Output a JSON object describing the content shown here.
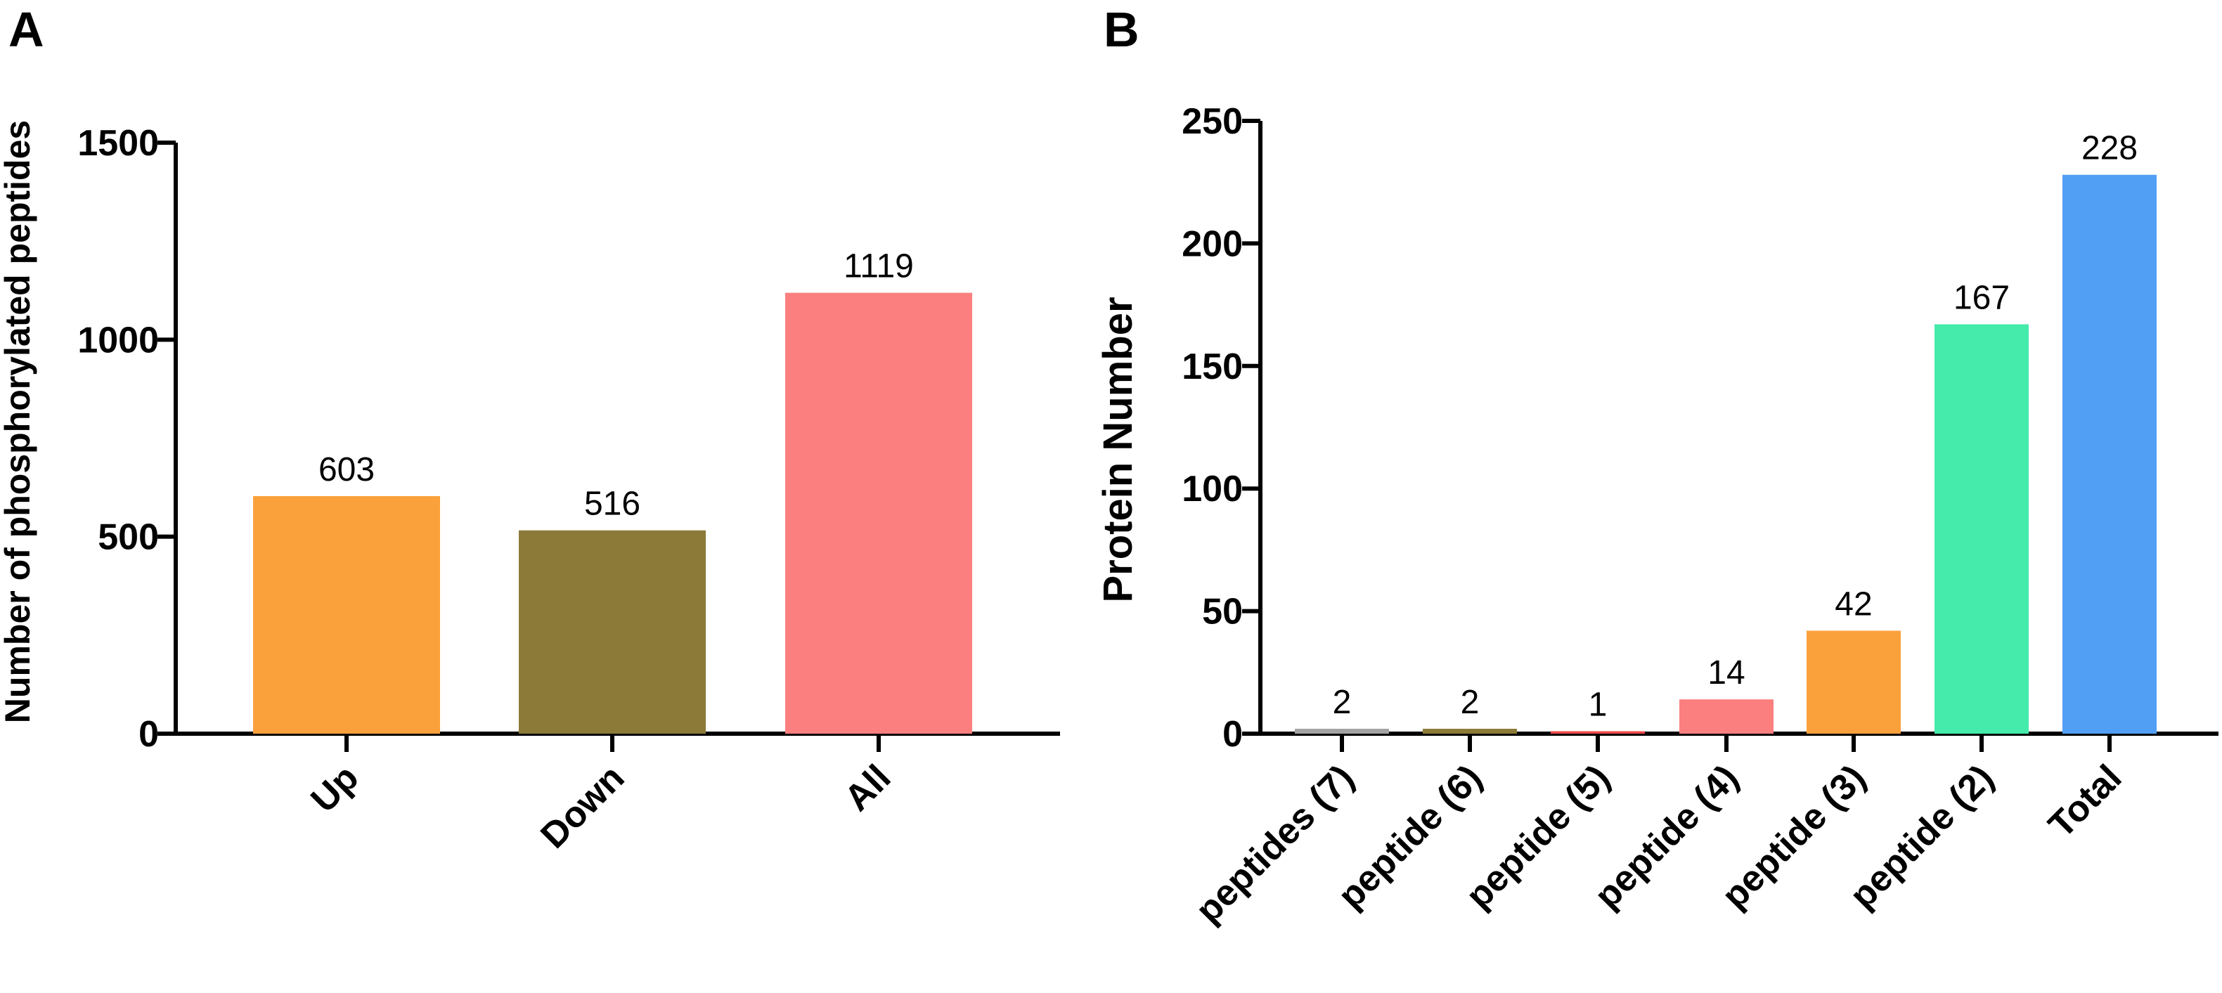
{
  "chart_data": [
    {
      "panel": "A",
      "type": "bar",
      "title": "",
      "xlabel": "",
      "ylabel": "Number of phosphorylated peptides",
      "ylim": [
        0,
        1500
      ],
      "yticks": [
        0,
        500,
        1000,
        1500
      ],
      "categories": [
        "Up",
        "Down",
        "All"
      ],
      "values": [
        603,
        516,
        1119
      ],
      "colors": [
        "#FBA13C",
        "#8B7A38",
        "#FC7F7F"
      ],
      "data_labels": [
        "603",
        "516",
        "1119"
      ],
      "grid": false
    },
    {
      "panel": "B",
      "type": "bar",
      "title": "",
      "xlabel": "",
      "ylabel": "Protein Number",
      "ylim": [
        0,
        250
      ],
      "yticks": [
        0,
        50,
        100,
        150,
        200,
        250
      ],
      "categories": [
        "peptides (7)",
        "peptide (6)",
        "peptide (5)",
        "peptide (4)",
        "peptide (3)",
        "peptide (2)",
        "Total"
      ],
      "values": [
        2,
        2,
        1,
        14,
        42,
        167,
        228
      ],
      "colors": [
        "#A3A3A3",
        "#8B7A38",
        "#F0494B",
        "#FC7F7F",
        "#FBA13C",
        "#44EBAA",
        "#509FF5"
      ],
      "data_labels": [
        "2",
        "2",
        "1",
        "14",
        "42",
        "167",
        "228"
      ],
      "grid": false
    }
  ]
}
